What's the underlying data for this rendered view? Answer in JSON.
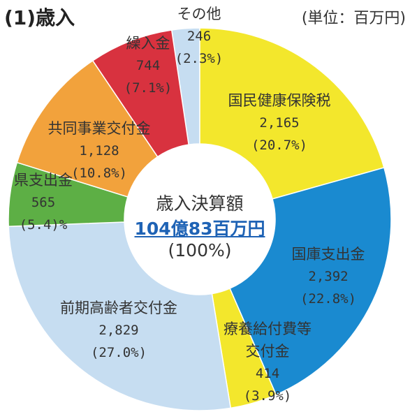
{
  "chart_data": {
    "type": "donut",
    "title": "(1)歳入",
    "unit_label": "(単位：百万円)",
    "center_title": "歳入決算額",
    "center_total": "104億83百万円",
    "center_percent": "(100%)",
    "categories": [
      "その他",
      "国民健康保険税",
      "国庫支出金",
      "療養給付費等交付金",
      "前期高齢者交付金",
      "県支出金",
      "共同事業交付金",
      "繰入金"
    ],
    "values": [
      246,
      2165,
      2392,
      414,
      2829,
      565,
      1128,
      744
    ],
    "value_labels": [
      "246",
      "2,165",
      "2,392",
      "414",
      "2,829",
      "565",
      "1,128",
      "744"
    ],
    "percent_labels": [
      "(2.3%)",
      "(20.7%)",
      "(22.8%)",
      "(3.9%)",
      "(27.0%)",
      "(5.4)%",
      "(10.8%)",
      "(7.1%)"
    ],
    "colors": [
      "#c6ddf1",
      "#f3e72c",
      "#1a8ad0",
      "#f3e72c",
      "#c6ddf1",
      "#5daf45",
      "#f2a23c",
      "#d8323f"
    ]
  }
}
